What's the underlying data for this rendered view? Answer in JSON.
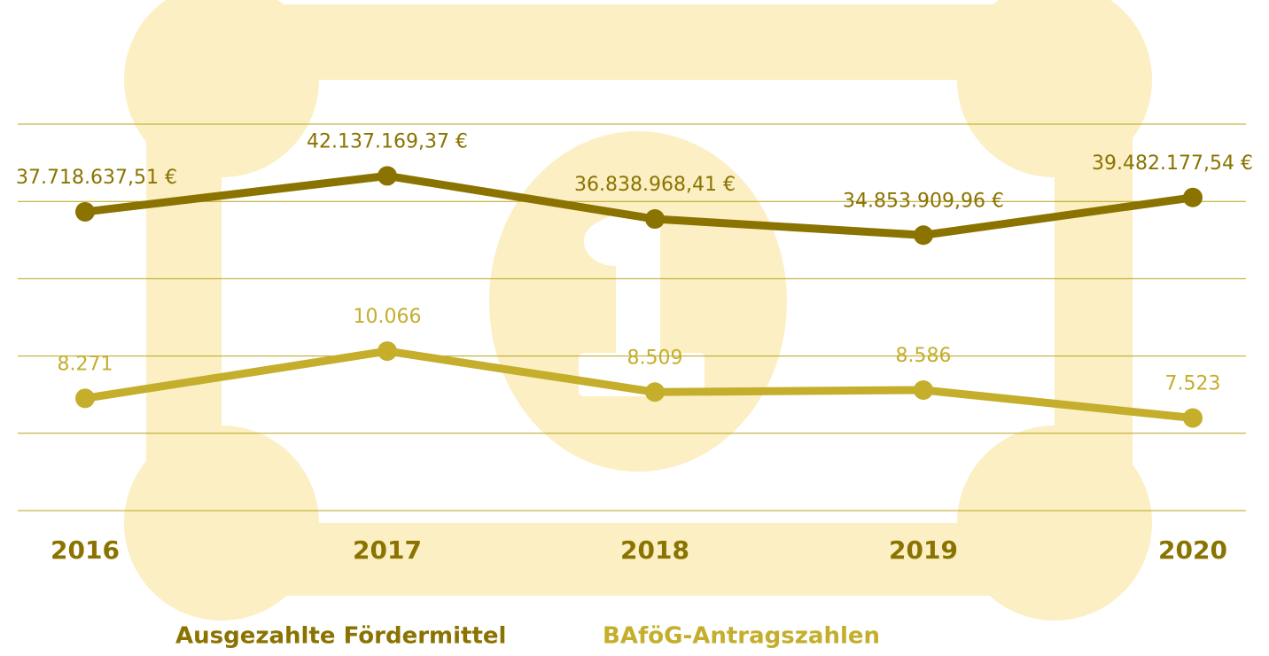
{
  "chart_data": {
    "type": "line",
    "categories": [
      "2016",
      "2017",
      "2018",
      "2019",
      "2020"
    ],
    "series": [
      {
        "name": "Ausgezahlte Fördermittel",
        "color": "#8a7300",
        "values": [
          37718637.51,
          42137169.37,
          36838968.41,
          34853909.96,
          39482177.54
        ],
        "value_labels": [
          "37.718.637,51 €",
          "42.137.169,37 €",
          "36.838.968,41 €",
          "34.853.909,96 €",
          "39.482.177,54 €"
        ]
      },
      {
        "name": "BAföG-Antragszahlen",
        "color": "#c4ae2c",
        "axis": "y2",
        "values": [
          8271,
          10066,
          8509,
          8586,
          7523
        ],
        "value_labels": [
          "8.271",
          "10.066",
          "8.509",
          "8.586",
          "7.523"
        ]
      }
    ],
    "ylim": [
      1000000,
      48500000
    ],
    "y2lim": [
      4000,
      18700
    ],
    "grid": true
  }
}
